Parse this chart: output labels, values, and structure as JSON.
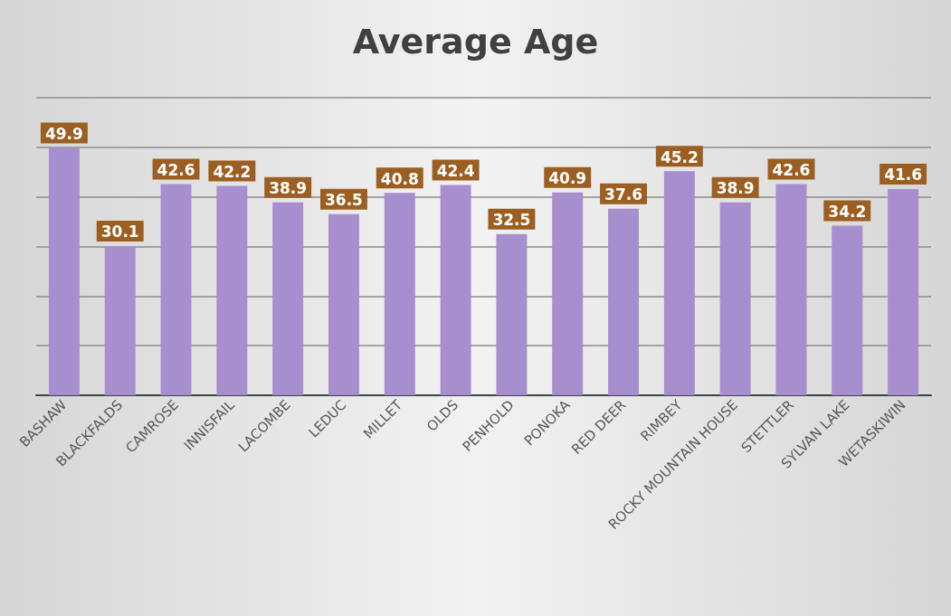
{
  "chart_data": {
    "type": "bar",
    "title": "Average Age",
    "categories": [
      "BASHAW",
      "BLACKFALDS",
      "CAMROSE",
      "INNISFAIL",
      "LACOMBE",
      "LEDUC",
      "MILLET",
      "OLDS",
      "PENHOLD",
      "PONOKA",
      "RED DEER",
      "RIMBEY",
      "ROCKY MOUNTAIN HOUSE",
      "STETTLER",
      "SYLVAN LAKE",
      "WETASKIWIN"
    ],
    "values": [
      49.9,
      30.1,
      42.6,
      42.2,
      38.9,
      36.5,
      40.8,
      42.4,
      32.5,
      40.9,
      37.6,
      45.2,
      38.9,
      42.6,
      34.2,
      41.6
    ],
    "color": "#a78fcf",
    "ylim": [
      0,
      60
    ],
    "yticks": [
      {
        "value": 0,
        "label": null
      },
      {
        "value": 10,
        "label": null
      },
      {
        "value": 20,
        "label": null
      },
      {
        "value": 30,
        "label": null
      },
      {
        "value": 40,
        "label": null
      },
      {
        "value": 50,
        "label": null
      },
      {
        "value": 60,
        "label": null
      }
    ],
    "tick_labels": "x",
    "grid": "y",
    "data_labels": true
  }
}
